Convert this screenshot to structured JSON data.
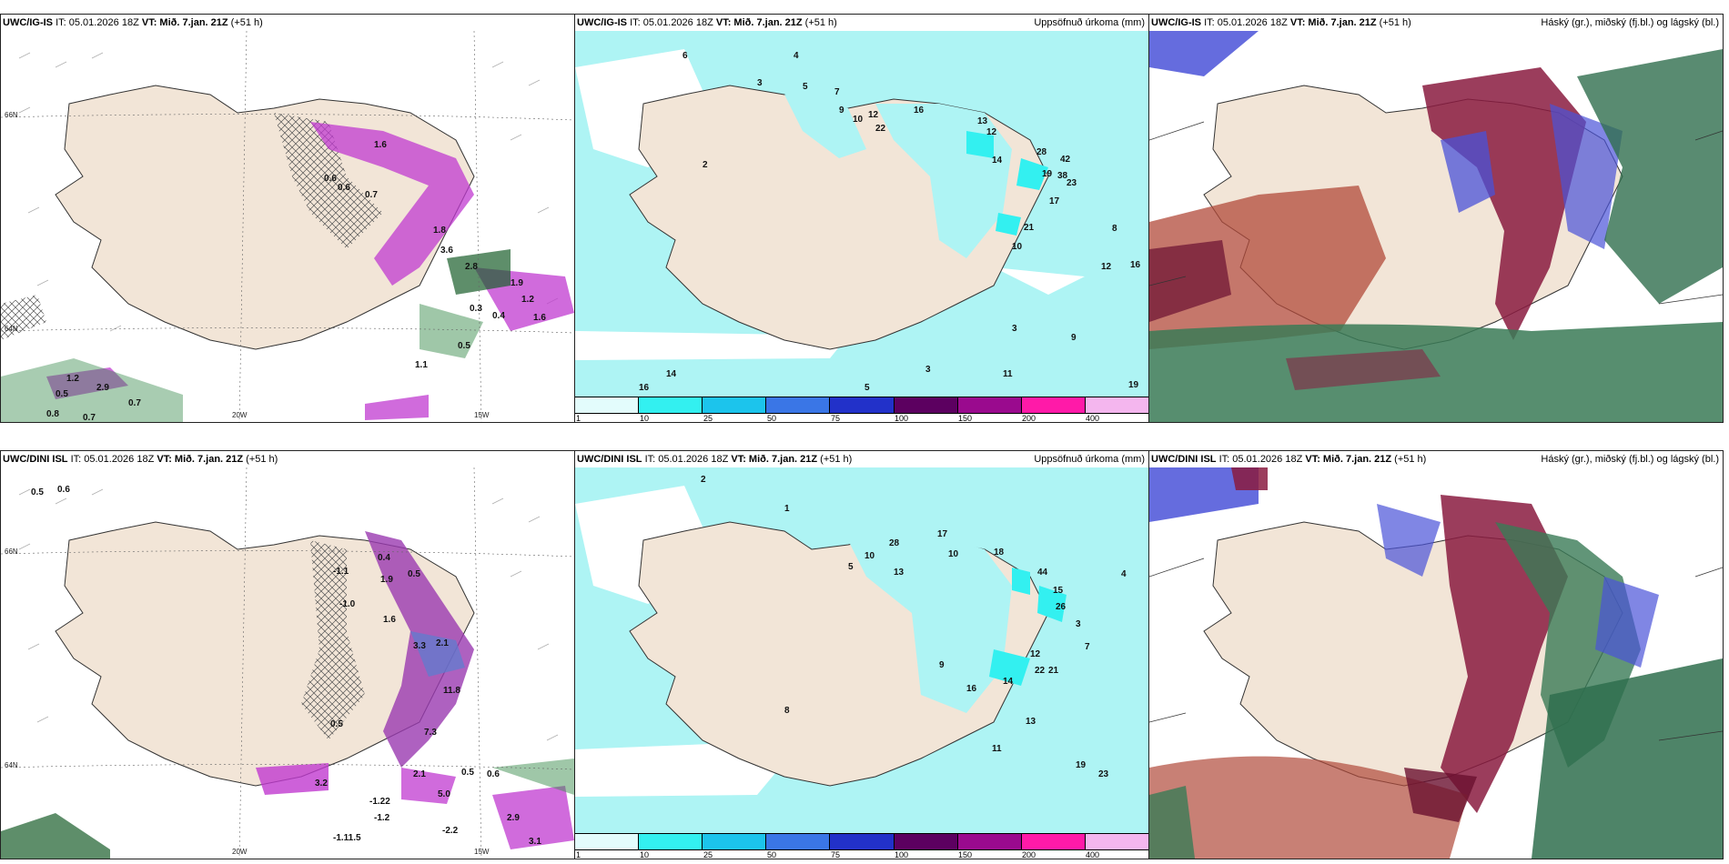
{
  "panels": [
    {
      "model": "UWC/IG-IS",
      "init": "IT: 05.01.2026 18Z",
      "vt_label": "VT:",
      "valid": "Mið. 7.jan. 21Z",
      "lead": "(+51 h)",
      "right": ""
    },
    {
      "model": "UWC/IG-IS",
      "init": "IT: 05.01.2026 18Z",
      "vt_label": "VT:",
      "valid": "Mið. 7.jan. 21Z",
      "lead": "(+51 h)",
      "right": "Uppsöfnuð úrkoma (mm)"
    },
    {
      "model": "UWC/IG-IS",
      "init": "IT: 05.01.2026 18Z",
      "vt_label": "VT:",
      "valid": "Mið. 7.jan. 21Z",
      "lead": "(+51 h)",
      "right": "Háský (gr.), miðský (fj.bl.) og lágský (bl.)"
    },
    {
      "model": "UWC/DINI ISL",
      "init": "IT: 05.01.2026 18Z",
      "vt_label": "VT:",
      "valid": "Mið. 7.jan. 21Z",
      "lead": "(+51 h)",
      "right": ""
    },
    {
      "model": "UWC/DINI ISL",
      "init": "IT: 05.01.2026 18Z",
      "vt_label": "VT:",
      "valid": "Mið. 7.jan. 21Z",
      "lead": "(+51 h)",
      "right": "Uppsöfnuð úrkoma (mm)"
    },
    {
      "model": "UWC/DINI ISL",
      "init": "IT: 05.01.2026 18Z",
      "vt_label": "VT:",
      "valid": "Mið. 7.jan. 21Z",
      "lead": "(+51 h)",
      "right": "Háský (gr.), miðský (fj.bl.) og lágský (bl.)"
    }
  ],
  "axes": {
    "lat_n": "66N",
    "lat_s": "64N",
    "lon_w": "20W",
    "lon_e": "15W"
  },
  "legend": {
    "labels": [
      "1",
      "10",
      "25",
      "50",
      "75",
      "100",
      "150",
      "200",
      "400"
    ],
    "colors": [
      "#e3fcfc",
      "#33f0f0",
      "#1cc4ec",
      "#3a76e6",
      "#2231c9",
      "#5c0060",
      "#9a0a8e",
      "#ff1aa8",
      "#f4b6ee"
    ]
  },
  "colors": {
    "land": "#f2e5d7",
    "sea_cyan": "#aef4f4",
    "cyan_light": "#d5fafa",
    "magenta": "#c03ad0",
    "green": "#3f8f52",
    "darkred": "#8a1b3f",
    "blue": "#4a52d8",
    "hatch": "#555555"
  },
  "top_left_labels": [
    "1.6",
    "0.6",
    "0.6",
    "0.7",
    "1.8",
    "3.6",
    "2.8",
    "0.3",
    "0.4",
    "1.6",
    "0.5",
    "1.2",
    "0.5",
    "2.9",
    "0.7",
    "0.8",
    "0.7",
    "1.9",
    "1.2",
    "1.1"
  ],
  "top_mid_labels": [
    "6",
    "4",
    "3",
    "5",
    "7",
    "9",
    "10",
    "12",
    "22",
    "16",
    "13",
    "12",
    "28",
    "42",
    "38",
    "23",
    "19",
    "14",
    "21",
    "17",
    "10",
    "8",
    "16",
    "12",
    "3",
    "9",
    "11",
    "19",
    "2",
    "14",
    "16",
    "3",
    "5"
  ],
  "bottom_left_labels": [
    "0.5",
    "0.6",
    "0.4",
    "1.9",
    "0.5",
    "1.6",
    "3.3",
    "2.1",
    "11.8",
    "7.3",
    "0.5",
    "3.2",
    "2.1",
    "5.0",
    "-1.2",
    "-1.1",
    "-1.0",
    "-1.22",
    "-1.11.5",
    "-2.2",
    "0.5",
    "0.6",
    "2.9",
    "3.1"
  ],
  "bottom_mid_labels": [
    "2",
    "1",
    "5",
    "10",
    "13",
    "28",
    "17",
    "10",
    "18",
    "44",
    "15",
    "26",
    "3",
    "7",
    "9",
    "11",
    "12",
    "14",
    "22",
    "21",
    "16",
    "13",
    "19",
    "23",
    "4",
    "8"
  ]
}
